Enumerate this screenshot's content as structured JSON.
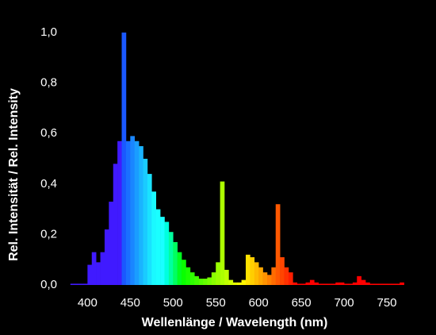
{
  "chart_data": {
    "type": "histogram",
    "xlabel": "Wellenlänge / Wavelength (nm)",
    "ylabel": "Rel. Intensität / Rel. Intensity",
    "bins": [
      380,
      385,
      390,
      395,
      400,
      405,
      410,
      415,
      420,
      425,
      430,
      435,
      440,
      445,
      450,
      455,
      460,
      465,
      470,
      475,
      480,
      485,
      490,
      495,
      500,
      505,
      510,
      515,
      520,
      525,
      530,
      535,
      540,
      545,
      550,
      555,
      560,
      565,
      570,
      575,
      580,
      585,
      590,
      595,
      600,
      605,
      610,
      615,
      620,
      625,
      630,
      635,
      640,
      645,
      650,
      655,
      660,
      665,
      670,
      675,
      680,
      685,
      690,
      695,
      700,
      705,
      710,
      715,
      720,
      725,
      730,
      735,
      740,
      745,
      750,
      755,
      760,
      765,
      770
    ],
    "values": [
      0.005,
      0.005,
      0.005,
      0.005,
      0.08,
      0.13,
      0.09,
      0.13,
      0.22,
      0.33,
      0.48,
      0.57,
      1.0,
      0.57,
      0.59,
      0.57,
      0.55,
      0.5,
      0.44,
      0.37,
      0.3,
      0.27,
      0.25,
      0.21,
      0.17,
      0.13,
      0.1,
      0.07,
      0.05,
      0.035,
      0.025,
      0.025,
      0.03,
      0.05,
      0.09,
      0.41,
      0.06,
      0.02,
      0.01,
      0.01,
      0.02,
      0.12,
      0.11,
      0.09,
      0.07,
      0.05,
      0.04,
      0.07,
      0.32,
      0.11,
      0.07,
      0.05,
      0.01,
      0.005,
      0.005,
      0.01,
      0.02,
      0.01,
      0.005,
      0.005,
      0.005,
      0.005,
      0.01,
      0.01,
      0.005,
      0.005,
      0.01,
      0.035,
      0.02,
      0.01,
      0.005,
      0.005,
      0.005,
      0.005,
      0.005,
      0.005,
      0.005,
      0.01
    ],
    "xlim": [
      370,
      775
    ],
    "ylim": [
      0,
      1.0
    ],
    "xticks": [
      400,
      450,
      500,
      550,
      600,
      650,
      700,
      750
    ],
    "yticks": [
      {
        "value": 0,
        "label": "0,0"
      },
      {
        "value": 0.2,
        "label": "0,2"
      },
      {
        "value": 0.4,
        "label": "0,4"
      },
      {
        "value": 0.6,
        "label": "0,6"
      },
      {
        "value": 0.8,
        "label": "0,8"
      },
      {
        "value": 1.0,
        "label": "1,0"
      }
    ],
    "grid": false
  }
}
